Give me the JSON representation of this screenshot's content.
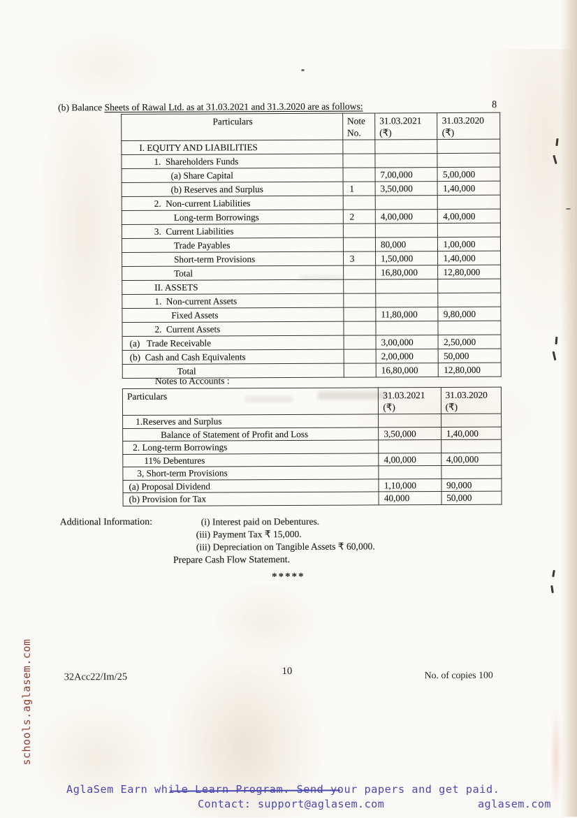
{
  "page": {
    "marks": "8",
    "title_prefix": "(b) Balance ",
    "title_underlined": "Sheets of Rawal Ltd. as at 31.03.2021 and 31.3.2020 are as follows:",
    "footer": {
      "paper_code": "32Acc22/Im/25",
      "page_number": "10",
      "copies": "No. of copies 100"
    }
  },
  "balance_sheet_table": {
    "columns": {
      "particulars": "Particulars",
      "note": {
        "line1": "Note",
        "line2": "No."
      },
      "y2021": {
        "line1": "31.03.2021",
        "line2": "(₹)"
      },
      "y2020": {
        "line1": "31.03.2020",
        "line2": "(₹)"
      }
    },
    "rows": [
      {
        "particulars": "I. EQUITY AND LIABILITIES",
        "note": "",
        "y2021": "",
        "y2020": "",
        "indent": 25
      },
      {
        "particulars": "1.  Shareholders Funds",
        "note": "",
        "y2021": "",
        "y2020": "",
        "indent": 46
      },
      {
        "particulars": "(a) Share Capital",
        "note": "",
        "y2021": "7,00,000",
        "y2020": "5,00,000",
        "indent": 70
      },
      {
        "particulars": "(b) Reserves and Surplus",
        "note": "1",
        "y2021": "3,50,000",
        "y2020": "1,40,000",
        "indent": 70
      },
      {
        "particulars": "2.  Non-current Liabilities",
        "note": "",
        "y2021": "",
        "y2020": "",
        "indent": 46
      },
      {
        "particulars": "Long-term Borrowings",
        "note": "2",
        "y2021": "4,00,000",
        "y2020": "4,00,000",
        "indent": 74
      },
      {
        "particulars": "3.  Current Liabilities",
        "note": "",
        "y2021": "",
        "y2020": "",
        "indent": 46
      },
      {
        "particulars": "Trade Payables",
        "note": "",
        "y2021": "80,000",
        "y2020": "1,00,000",
        "indent": 74
      },
      {
        "particulars": "Short-term Provisions",
        "note": "3",
        "y2021": "1,50,000",
        "y2020": "1,40,000",
        "indent": 74
      },
      {
        "particulars": "Total",
        "note": "",
        "y2021": "16,80,000",
        "y2020": "12,80,000",
        "indent": 74
      },
      {
        "particulars": "II. ASSETS",
        "note": "",
        "y2021": "",
        "y2020": "",
        "indent": 46
      },
      {
        "particulars": "1.  Non-current Assets",
        "note": "",
        "y2021": "",
        "y2020": "",
        "indent": 46
      },
      {
        "particulars": "Fixed Assets",
        "note": "",
        "y2021": "11,80,000",
        "y2020": "9,80,000",
        "indent": 70
      },
      {
        "particulars": "2.  Current Assets",
        "note": "",
        "y2021": "",
        "y2020": "",
        "indent": 46
      },
      {
        "particulars": "(a)   Trade Receivable",
        "note": "",
        "y2021": "3,00,000",
        "y2020": "2,50,000",
        "indent": 10
      },
      {
        "particulars": "(b)  Cash and Cash Equivalents",
        "note": "",
        "y2021": "2,00,000",
        "y2020": "50,000",
        "indent": 10
      },
      {
        "particulars": "Total",
        "note": "",
        "y2021": "16,80,000",
        "y2020": "12,80,000",
        "indent": 78
      }
    ]
  },
  "notes_section": {
    "heading": "Notes to Accounts :",
    "columns": {
      "particulars": "Particulars",
      "y2021": {
        "line1": "31.03.2021",
        "line2": "(₹)"
      },
      "y2020": {
        "line1": "31.03.2020",
        "line2": "(₹)"
      }
    },
    "rows": [
      {
        "particulars": "1.Reserves and Surplus",
        "y2021": "",
        "y2020": "",
        "indent": 18
      },
      {
        "particulars": "Balance of Statement of Profit and Loss",
        "y2021": "3,50,000",
        "y2020": "1,40,000",
        "indent": 54
      },
      {
        "particulars": "2. Long-term Borrowings",
        "y2021": "",
        "y2020": "",
        "indent": 14
      },
      {
        "particulars": "11% Debentures",
        "y2021": "4,00,000",
        "y2020": "4,00,000",
        "indent": 30
      },
      {
        "particulars": "3, Short-term Provisions",
        "y2021": "",
        "y2020": "",
        "indent": 20
      },
      {
        "particulars": "(a) Proposal Dividend",
        "y2021": "1,10,000",
        "y2020": "90,000",
        "indent": 8
      },
      {
        "particulars": "(b) Provision for Tax",
        "y2021": "40,000",
        "y2020": "50,000",
        "indent": 8
      }
    ]
  },
  "additional_info": {
    "label": "Additional Information:",
    "items": [
      "(i) Interest paid on Debentures.",
      "(iii) Payment Tax ₹ 15,000.",
      "(iii) Depreciation on Tangible Assets ₹ 60,000."
    ],
    "instruction": "Prepare Cash Flow Statement.",
    "separator": "*****"
  },
  "watermarks": {
    "side_vertical": "schools.aglasem.com",
    "banner_line1": "AglaSem Earn while Learn Program. Send your papers and get paid.",
    "banner_contact": "Contact: support@aglasem.com",
    "banner_site": "aglasem.com"
  },
  "colors": {
    "banner_text": "#4947b2",
    "side_text": "#8a3a2e",
    "ink": "#201d1a"
  }
}
